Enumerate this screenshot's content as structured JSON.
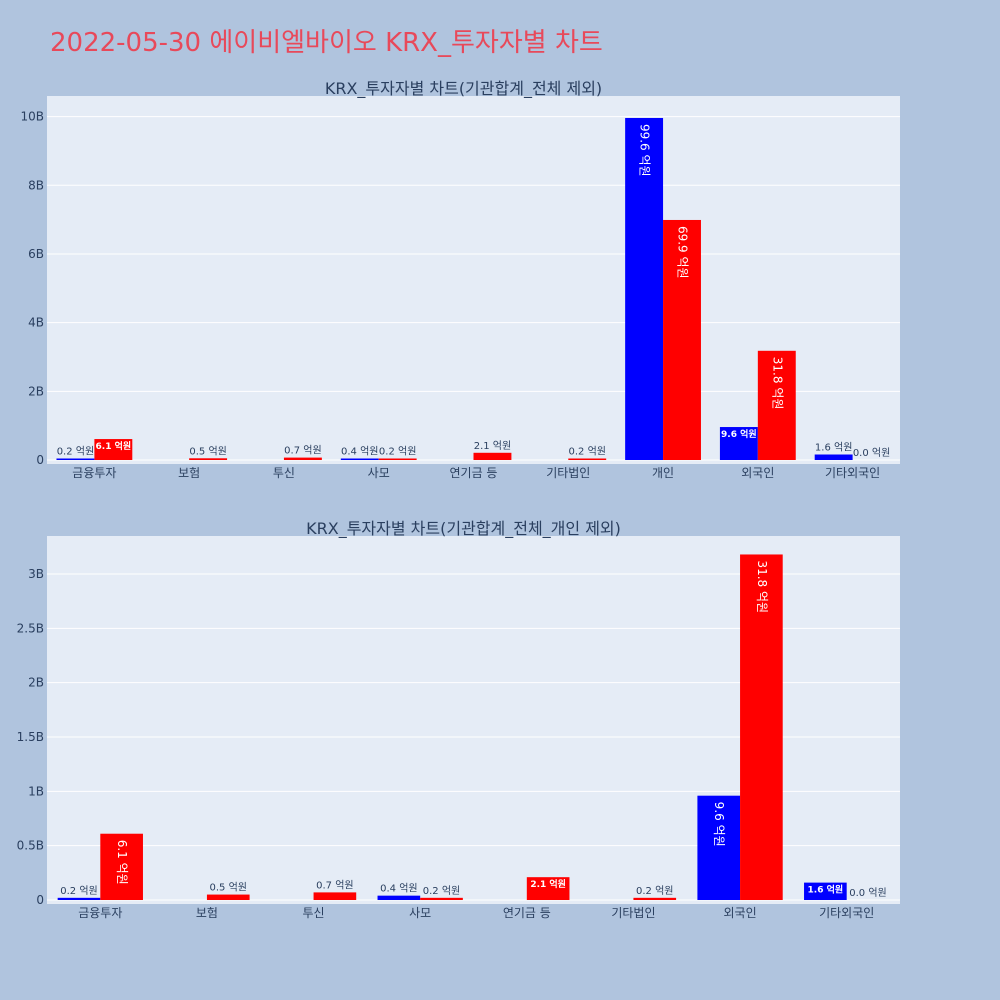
{
  "title": "2022-05-30 에이비엘바이오 KRX_투자자별 차트",
  "colors": {
    "background": "#b0c4de",
    "plot_bg": "#e5ecf6",
    "title": "#e8495a",
    "series_a": "#0000ff",
    "series_b": "#ff0000"
  },
  "chart_data": [
    {
      "type": "bar",
      "title": "KRX_투자자별 차트(기관합계_전체 제외)",
      "categories": [
        "금융투자",
        "보험",
        "투신",
        "사모",
        "연기금 등",
        "기타법인",
        "개인",
        "외국인",
        "기타외국인"
      ],
      "series": [
        {
          "color": "#0000ff",
          "values": [
            0.02,
            0,
            0,
            0.04,
            0,
            0,
            9.96,
            0.96,
            0.16
          ],
          "labels": [
            "0.2 억원",
            "",
            "",
            "0.4 억원",
            "",
            "",
            "99.6 억원",
            "9.6 억원",
            "1.6 억원"
          ]
        },
        {
          "color": "#ff0000",
          "values": [
            0.61,
            0.05,
            0.07,
            0.02,
            0.21,
            0.02,
            6.99,
            3.18,
            0.0
          ],
          "labels": [
            "6.1 억원",
            "0.5 억원",
            "0.7 억원",
            "0.2 억원",
            "2.1 억원",
            "0.2 억원",
            "69.9 억원",
            "31.8 억원",
            "0.0 억원"
          ]
        }
      ],
      "ylim": [
        0,
        10.6
      ],
      "yticks": [
        0,
        2,
        4,
        6,
        8,
        10
      ],
      "ytick_labels": [
        "0",
        "2B",
        "4B",
        "6B",
        "8B",
        "10B"
      ],
      "grid": true
    },
    {
      "type": "bar",
      "title": "KRX_투자자별 차트(기관합계_전체_개인 제외)",
      "categories": [
        "금융투자",
        "보험",
        "투신",
        "사모",
        "연기금 등",
        "기타법인",
        "외국인",
        "기타외국인"
      ],
      "series": [
        {
          "color": "#0000ff",
          "values": [
            0.02,
            0,
            0,
            0.04,
            0,
            0,
            0.96,
            0.16
          ],
          "labels": [
            "0.2 억원",
            "",
            "",
            "0.4 억원",
            "",
            "",
            "9.6 억원",
            "1.6 억원"
          ]
        },
        {
          "color": "#ff0000",
          "values": [
            0.61,
            0.05,
            0.07,
            0.02,
            0.21,
            0.02,
            3.18,
            0.0
          ],
          "labels": [
            "6.1 억원",
            "0.5 억원",
            "0.7 억원",
            "0.2 억원",
            "2.1 억원",
            "0.2 억원",
            "31.8 억원",
            "0.0 억원"
          ]
        }
      ],
      "ylim": [
        0,
        3.35
      ],
      "yticks": [
        0,
        0.5,
        1,
        1.5,
        2,
        2.5,
        3
      ],
      "ytick_labels": [
        "0",
        "0.5B",
        "1B",
        "1.5B",
        "2B",
        "2.5B",
        "3B"
      ],
      "grid": true
    }
  ]
}
